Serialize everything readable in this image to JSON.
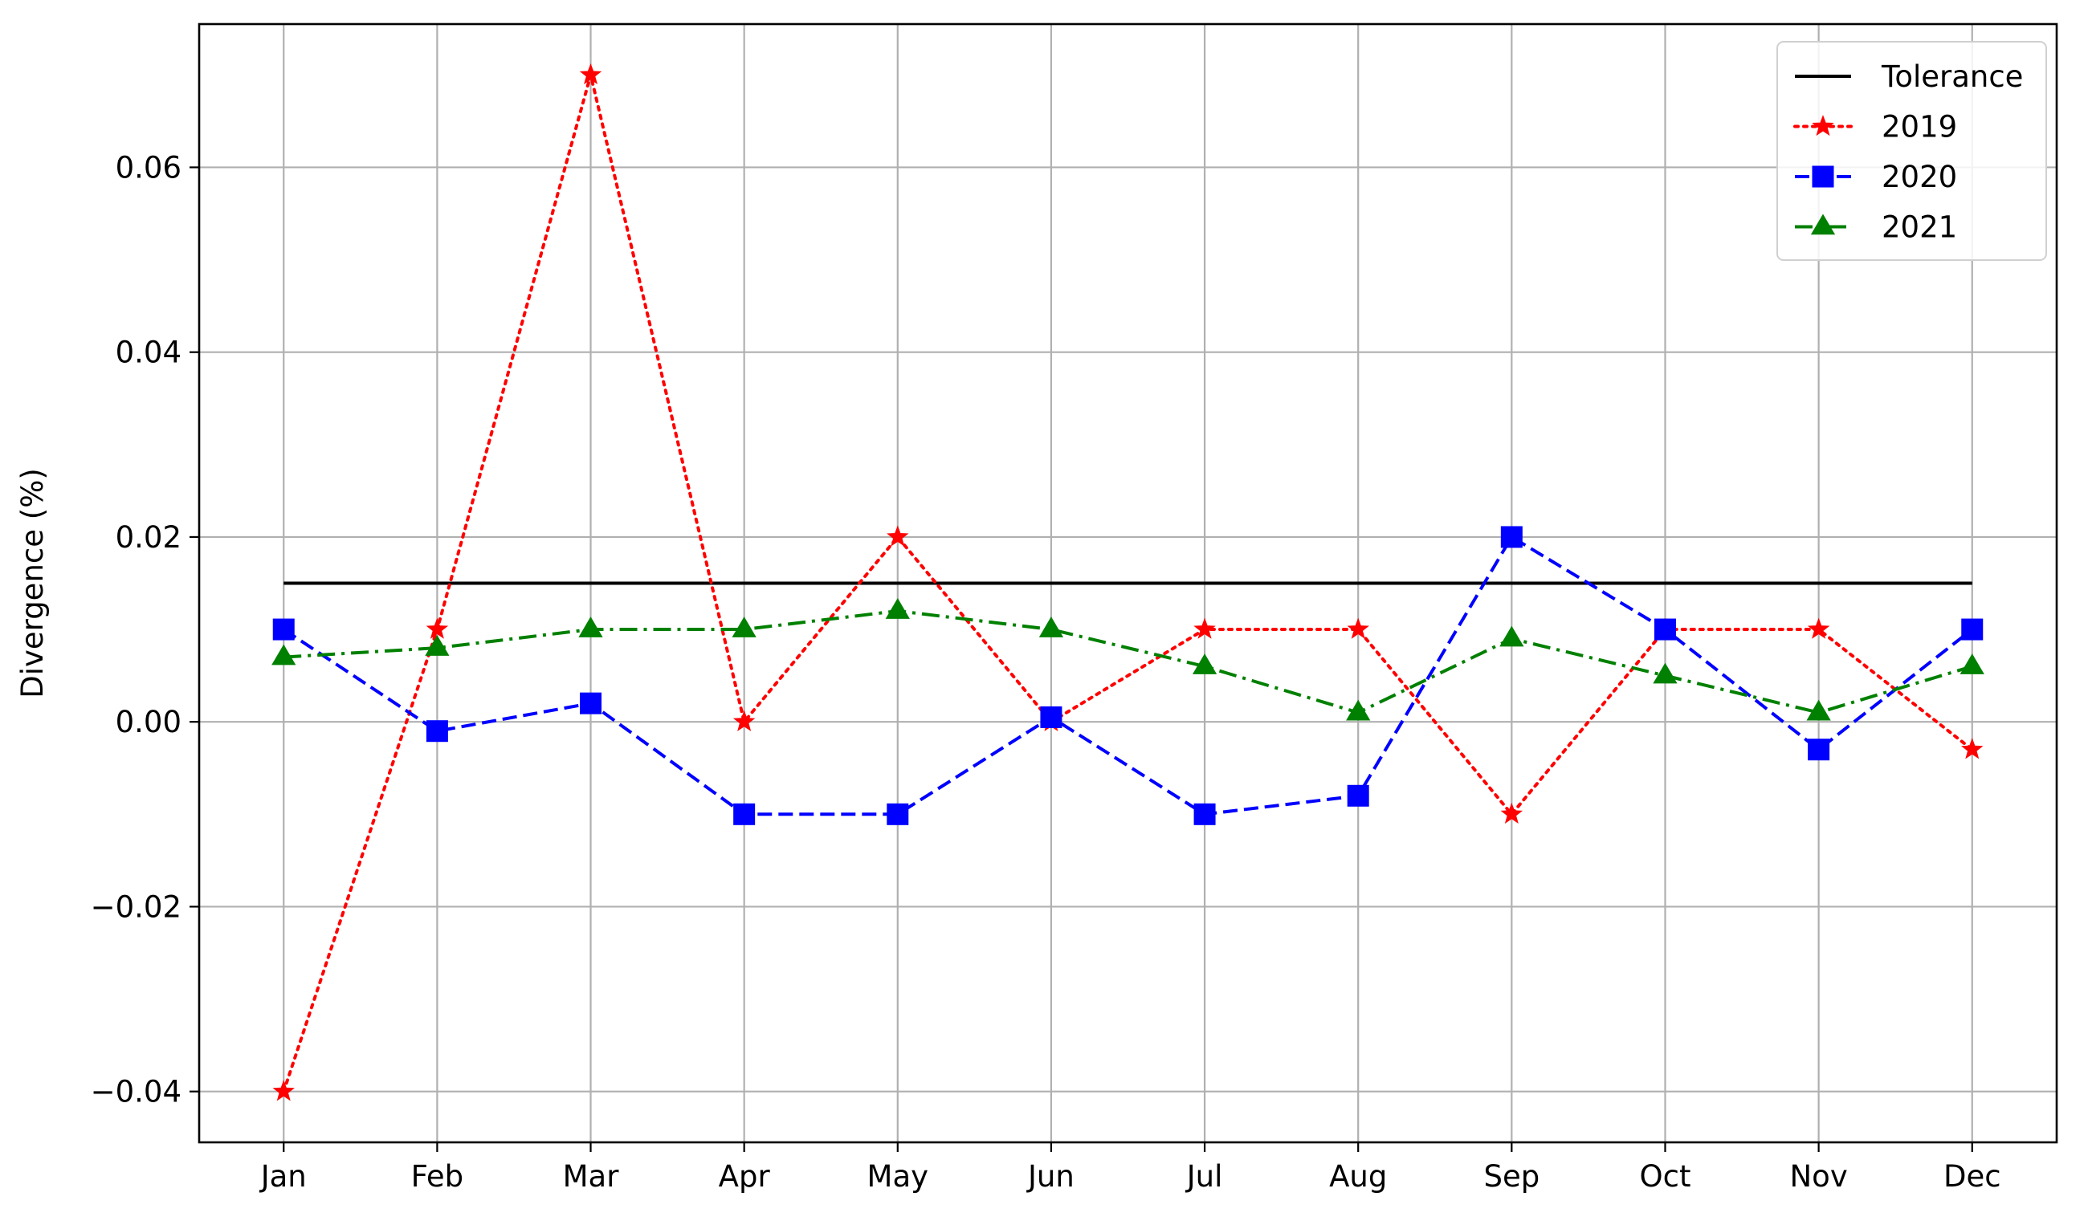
{
  "chart_data": {
    "type": "line",
    "title": "",
    "xlabel": "",
    "ylabel": "Divergence (%)",
    "categories": [
      "Jan",
      "Feb",
      "Mar",
      "Apr",
      "May",
      "Jun",
      "Jul",
      "Aug",
      "Sep",
      "Oct",
      "Nov",
      "Dec"
    ],
    "yticks": [
      -0.04,
      -0.02,
      0.0,
      0.02,
      0.04,
      0.06
    ],
    "ytick_labels": [
      "−0.04",
      "−0.02",
      "0.00",
      "0.02",
      "0.04",
      "0.06"
    ],
    "ylim": [
      -0.0455,
      0.0755
    ],
    "grid": true,
    "legend_position": "top-right",
    "series": [
      {
        "name": "Tolerance",
        "values": [
          0.015,
          0.015,
          0.015,
          0.015,
          0.015,
          0.015,
          0.015,
          0.015,
          0.015,
          0.015,
          0.015,
          0.015
        ],
        "color": "#000000",
        "line_style": "solid",
        "marker": "none"
      },
      {
        "name": "2019",
        "values": [
          -0.04,
          0.01,
          0.07,
          0.0,
          0.02,
          0.0,
          0.01,
          0.01,
          -0.01,
          0.01,
          0.01,
          -0.003
        ],
        "color": "#ff0000",
        "line_style": "dotted",
        "marker": "star"
      },
      {
        "name": "2020",
        "values": [
          0.01,
          -0.001,
          0.002,
          -0.01,
          -0.01,
          0.0005,
          -0.01,
          -0.008,
          0.02,
          0.01,
          -0.003,
          0.01
        ],
        "color": "#0000ff",
        "line_style": "dashed",
        "marker": "square"
      },
      {
        "name": "2021",
        "values": [
          0.007,
          0.008,
          0.01,
          0.01,
          0.012,
          0.01,
          0.006,
          0.001,
          0.009,
          0.005,
          0.001,
          0.006
        ],
        "color": "#008000",
        "line_style": "dashdot",
        "marker": "triangle"
      }
    ]
  }
}
